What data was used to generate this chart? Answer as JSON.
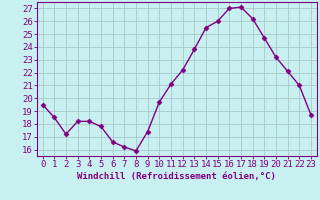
{
  "hours": [
    0,
    1,
    2,
    3,
    4,
    5,
    6,
    7,
    8,
    9,
    10,
    11,
    12,
    13,
    14,
    15,
    16,
    17,
    18,
    19,
    20,
    21,
    22,
    23
  ],
  "values": [
    19.5,
    18.5,
    17.2,
    18.2,
    18.2,
    17.8,
    16.6,
    16.2,
    15.9,
    17.4,
    19.7,
    21.1,
    22.2,
    23.8,
    25.5,
    26.0,
    27.0,
    27.1,
    26.2,
    24.7,
    23.2,
    22.1,
    21.0,
    18.7
  ],
  "line_color": "#800080",
  "marker": "D",
  "marker_size": 2.5,
  "bg_color": "#c8f0f0",
  "grid_color": "#a8c8c8",
  "xlabel": "Windchill (Refroidissement éolien,°C)",
  "ylim": [
    15.5,
    27.5
  ],
  "yticks": [
    16,
    17,
    18,
    19,
    20,
    21,
    22,
    23,
    24,
    25,
    26,
    27
  ],
  "axis_color": "#800080",
  "tick_color": "#800080",
  "label_fontsize": 6.5,
  "tick_fontsize": 6.5
}
